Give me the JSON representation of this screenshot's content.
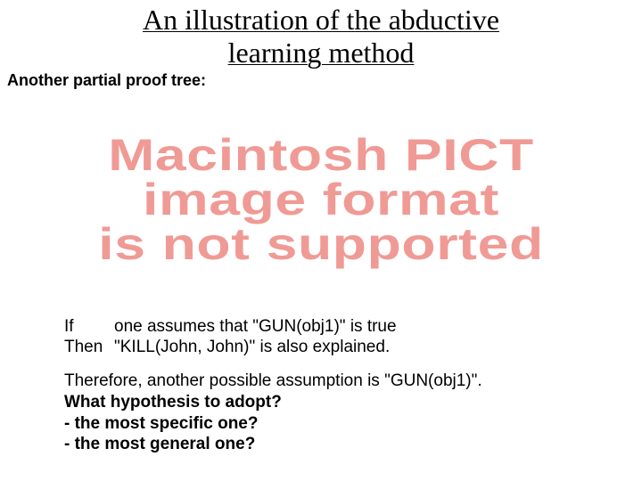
{
  "title_line1": "An illustration of the abductive",
  "title_line2": "learning method",
  "subtitle": "Another partial proof tree:",
  "pict": {
    "line1": "Macintosh PICT",
    "line2": "image format",
    "line3": "is not supported",
    "color": "#f09a95"
  },
  "ifthen": {
    "if_label": "If",
    "if_text": "one assumes that \"GUN(obj1)\" is true",
    "then_label": "Then",
    "then_text": "\"KILL(John, John)\" is also explained."
  },
  "conclusion": {
    "line1": "Therefore, another possible assumption is \"GUN(obj1)\".",
    "line2": "What hypothesis to adopt?",
    "line3": "- the most specific one?",
    "line4": "- the most general one?"
  }
}
